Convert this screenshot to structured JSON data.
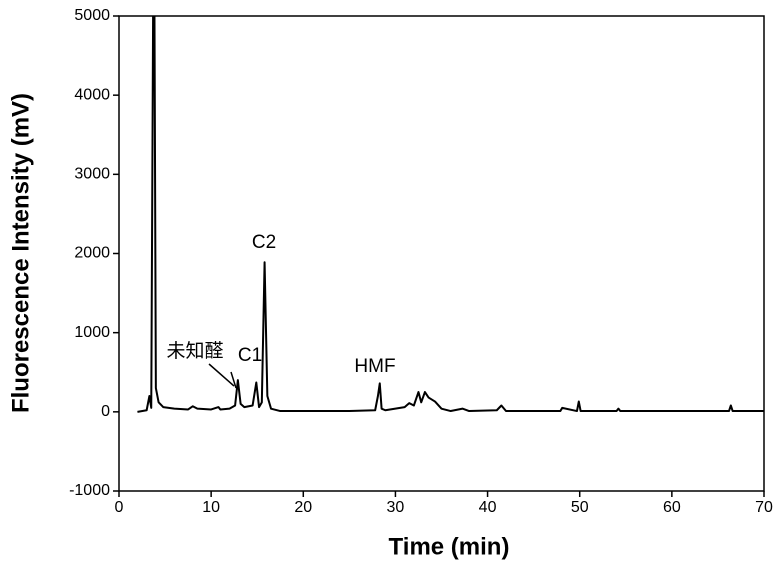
{
  "chart_data": {
    "type": "line",
    "x_label": "Time (min)",
    "y_label": "Fluorescence Intensity (mV)",
    "annotations": [
      "未知醛",
      "C1",
      "C2",
      "HMF"
    ],
    "xlim": [
      0,
      70
    ],
    "ylim": [
      -1000,
      5000
    ],
    "xticks": [
      0,
      10,
      20,
      30,
      40,
      50,
      60,
      70
    ],
    "yticks": [
      -1000,
      0,
      1000,
      2000,
      3000,
      4000,
      5000
    ],
    "grid": false,
    "series": [
      {
        "color": "#000000",
        "x": [
          2.0,
          3.0,
          3.3,
          3.5,
          3.7,
          3.85,
          4.0,
          4.3,
          4.8,
          6,
          7.5,
          8.0,
          8.5,
          10,
          10.8,
          11,
          12,
          12.6,
          12.9,
          13.2,
          13.6,
          14.5,
          14.9,
          15.2,
          15.5,
          15.8,
          16.1,
          16.5,
          17.5,
          20,
          25,
          27.8,
          28.1,
          28.3,
          28.5,
          28.9,
          30,
          31,
          31.5,
          32,
          32.5,
          32.8,
          33.2,
          33.6,
          34.3,
          35,
          36,
          37.3,
          38,
          41,
          41.5,
          42,
          47.9,
          48.1,
          49.7,
          49.9,
          50.1,
          54,
          54.2,
          54.4,
          60,
          66.2,
          66.4,
          66.6,
          70
        ],
        "values": [
          0,
          20,
          200,
          50,
          5000,
          5000,
          300,
          120,
          60,
          40,
          30,
          70,
          40,
          30,
          60,
          30,
          40,
          80,
          400,
          100,
          60,
          80,
          370,
          60,
          120,
          1890,
          200,
          40,
          10,
          10,
          10,
          20,
          200,
          360,
          40,
          20,
          40,
          60,
          110,
          80,
          250,
          120,
          250,
          180,
          130,
          40,
          10,
          40,
          10,
          20,
          80,
          10,
          10,
          50,
          10,
          130,
          10,
          10,
          40,
          10,
          10,
          10,
          80,
          10,
          10
        ]
      }
    ]
  }
}
